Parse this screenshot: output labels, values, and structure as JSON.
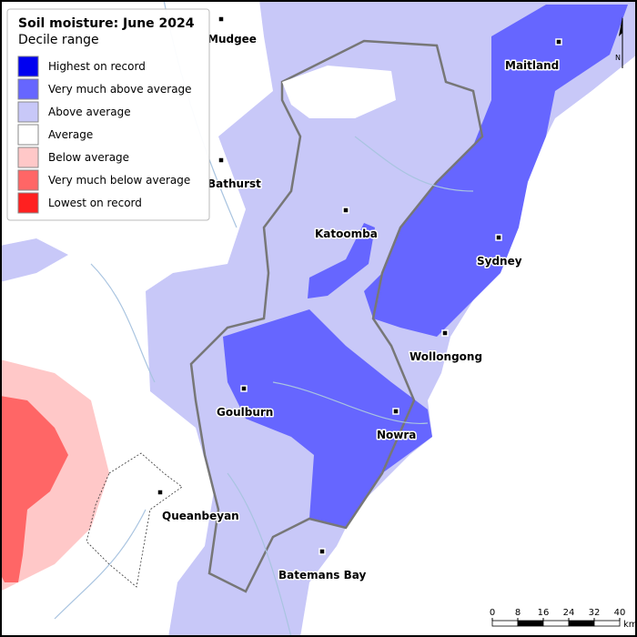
{
  "legend": {
    "title": "Soil moisture: June 2024",
    "subtitle": "Decile range",
    "items": [
      {
        "label": "Highest on record",
        "color": "#0000f0"
      },
      {
        "label": "Very much above average",
        "color": "#6666ff"
      },
      {
        "label": "Above average",
        "color": "#c8c8f8"
      },
      {
        "label": "Average",
        "color": "#ffffff"
      },
      {
        "label": "Below average",
        "color": "#ffc8c8"
      },
      {
        "label": "Very much below average",
        "color": "#ff6666"
      },
      {
        "label": "Lowest on record",
        "color": "#ff2020"
      }
    ]
  },
  "places": [
    "Mudgee",
    "Maitland",
    "Bathurst",
    "Katoomba",
    "Sydney",
    "Wollongong",
    "Goulburn",
    "Nowra",
    "Queanbeyan",
    "Batemans Bay"
  ],
  "scale_bar": {
    "ticks": [
      0,
      8,
      16,
      24,
      32,
      40
    ],
    "unit": "km"
  },
  "north": "N"
}
